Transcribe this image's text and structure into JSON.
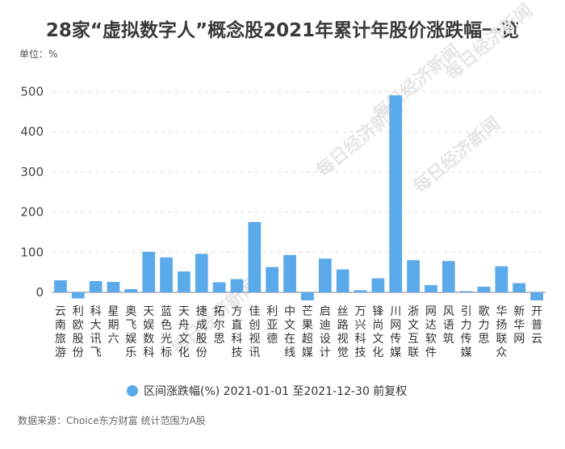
{
  "chart_data": {
    "type": "bar",
    "title": "28家“虚拟数字人”概念股2021年累计年股价涨跌幅一览",
    "unit_label": "单位：%",
    "source": "数据来源：Choice东方财富 统计范围为A股",
    "watermark": "每日经济新闻",
    "legend": "区间涨跌幅(%) 2021-01-01 至2021-12-30 前复权",
    "ylim": [
      -20,
      500
    ],
    "yticks": [
      0,
      100,
      200,
      300,
      400,
      500
    ],
    "grid": true,
    "bar_color": "#5aa9ea",
    "categories": [
      "云南旅游",
      "利欧股份",
      "科大讯飞",
      "星期六",
      "奥飞娱乐",
      "天娱数科",
      "蓝色光标",
      "天舟文化",
      "捷成股份",
      "拓尔思",
      "方直科技",
      "佳创视讯",
      "利亚德",
      "中文在线",
      "芒果超媒",
      "启迪设计",
      "丝路视觉",
      "万兴科技",
      "锋尚文化",
      "川网传媒",
      "浙文互联",
      "网达软件",
      "风语筑",
      "引力传媒",
      "歌力思",
      "华扬联众",
      "新华网",
      "开普云"
    ],
    "values": [
      30,
      -15,
      28,
      26,
      8,
      101,
      87,
      52,
      96,
      25,
      33,
      175,
      63,
      93,
      -20,
      84,
      57,
      5,
      35,
      491,
      80,
      18,
      78,
      3,
      14,
      65,
      23,
      -20
    ]
  }
}
